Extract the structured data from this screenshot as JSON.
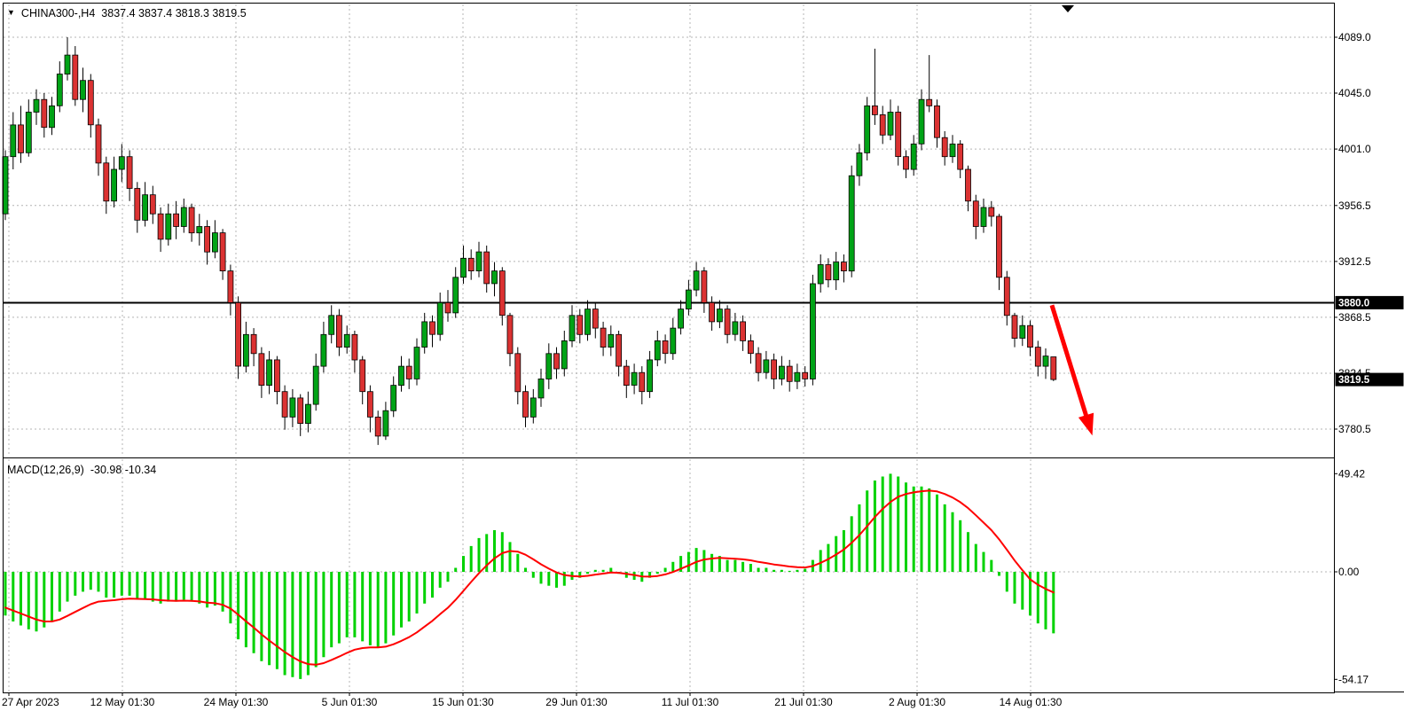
{
  "header": {
    "expand_icon": "▼",
    "symbol": "CHINA300-,H4",
    "quote": "3837.4 3837.4 3818.3 3819.5"
  },
  "indicator": {
    "label": "MACD(12,26,9)",
    "values": "-30.98 -10.34"
  },
  "price_axis": {
    "labels": [
      "4089.0",
      "4045.0",
      "4001.0",
      "3956.5",
      "3912.5",
      "3868.5",
      "3824.5",
      "3780.5"
    ]
  },
  "macd_axis": {
    "labels": [
      "49.42",
      "0.00",
      "-54.17"
    ]
  },
  "time_axis": {
    "labels": [
      "27 Apr 2023",
      "12 May 01:30",
      "24 May 01:30",
      "5 Jun 01:30",
      "15 Jun 01:30",
      "29 Jun 01:30",
      "11 Jul 01:30",
      "21 Jul 01:30",
      "2 Aug 01:30",
      "14 Aug 01:30"
    ]
  },
  "badges": {
    "hline": "3880.0",
    "last_price": "3819.5"
  },
  "colors": {
    "bull": "#00A316",
    "bear": "#DB3232",
    "wick": "#000000",
    "histogram": "#00D200",
    "signal": "#FF0000",
    "arrow": "#FF0000",
    "grid": "#B4B4B4",
    "hline": "#000000",
    "badge_bg": "#000000",
    "badge_text": "#FFFFFF"
  },
  "chart_data": {
    "type": "candlestick",
    "symbol": "CHINA300-",
    "timeframe": "H4",
    "title": "CHINA300-,H4 3837.4 3837.4 3818.3 3819.5",
    "current_bar": {
      "open": 3837.4,
      "high": 3837.4,
      "low": 3818.3,
      "close": 3819.5
    },
    "last_price": 3819.5,
    "hline": 3880.0,
    "price_axis_ticks": [
      4089.0,
      4045.0,
      4001.0,
      3956.5,
      3912.5,
      3868.5,
      3824.5,
      3780.5
    ],
    "candles_ohlc": [
      [
        3950,
        4000,
        3945,
        3995
      ],
      [
        3995,
        4030,
        3985,
        4020
      ],
      [
        4020,
        4035,
        3990,
        3998
      ],
      [
        3998,
        4040,
        3995,
        4030
      ],
      [
        4030,
        4048,
        4020,
        4040
      ],
      [
        4040,
        4045,
        4010,
        4018
      ],
      [
        4018,
        4042,
        4012,
        4035
      ],
      [
        4035,
        4070,
        4030,
        4060
      ],
      [
        4060,
        4089,
        4055,
        4075
      ],
      [
        4075,
        4082,
        4035,
        4040
      ],
      [
        4040,
        4065,
        4030,
        4055
      ],
      [
        4055,
        4060,
        4010,
        4020
      ],
      [
        4020,
        4025,
        3980,
        3990
      ],
      [
        3990,
        3995,
        3950,
        3960
      ],
      [
        3960,
        3995,
        3955,
        3985
      ],
      [
        3985,
        4005,
        3975,
        3995
      ],
      [
        3995,
        4000,
        3960,
        3970
      ],
      [
        3970,
        3975,
        3935,
        3945
      ],
      [
        3945,
        3975,
        3940,
        3965
      ],
      [
        3965,
        3972,
        3942,
        3950
      ],
      [
        3950,
        3955,
        3920,
        3930
      ],
      [
        3930,
        3958,
        3925,
        3950
      ],
      [
        3950,
        3960,
        3930,
        3940
      ],
      [
        3940,
        3962,
        3935,
        3955
      ],
      [
        3955,
        3958,
        3928,
        3935
      ],
      [
        3935,
        3950,
        3925,
        3940
      ],
      [
        3940,
        3945,
        3910,
        3920
      ],
      [
        3920,
        3945,
        3915,
        3935
      ],
      [
        3935,
        3938,
        3898,
        3905
      ],
      [
        3905,
        3910,
        3870,
        3880
      ],
      [
        3880,
        3885,
        3820,
        3830
      ],
      [
        3830,
        3865,
        3825,
        3855
      ],
      [
        3855,
        3860,
        3830,
        3840
      ],
      [
        3840,
        3845,
        3805,
        3815
      ],
      [
        3815,
        3842,
        3808,
        3835
      ],
      [
        3835,
        3838,
        3800,
        3810
      ],
      [
        3810,
        3815,
        3780,
        3790
      ],
      [
        3790,
        3812,
        3782,
        3805
      ],
      [
        3805,
        3808,
        3775,
        3785
      ],
      [
        3785,
        3810,
        3778,
        3800
      ],
      [
        3800,
        3840,
        3795,
        3830
      ],
      [
        3830,
        3865,
        3825,
        3855
      ],
      [
        3855,
        3878,
        3848,
        3870
      ],
      [
        3870,
        3875,
        3838,
        3845
      ],
      [
        3845,
        3862,
        3840,
        3855
      ],
      [
        3855,
        3858,
        3825,
        3835
      ],
      [
        3835,
        3838,
        3800,
        3810
      ],
      [
        3810,
        3815,
        3778,
        3790
      ],
      [
        3790,
        3795,
        3768,
        3775
      ],
      [
        3775,
        3802,
        3772,
        3795
      ],
      [
        3795,
        3822,
        3790,
        3815
      ],
      [
        3815,
        3838,
        3810,
        3830
      ],
      [
        3830,
        3836,
        3812,
        3820
      ],
      [
        3820,
        3852,
        3815,
        3845
      ],
      [
        3845,
        3872,
        3840,
        3865
      ],
      [
        3865,
        3870,
        3845,
        3855
      ],
      [
        3855,
        3888,
        3850,
        3880
      ],
      [
        3880,
        3890,
        3865,
        3872
      ],
      [
        3872,
        3908,
        3868,
        3900
      ],
      [
        3900,
        3925,
        3895,
        3915
      ],
      [
        3915,
        3922,
        3898,
        3905
      ],
      [
        3905,
        3928,
        3900,
        3920
      ],
      [
        3920,
        3925,
        3888,
        3895
      ],
      [
        3895,
        3912,
        3885,
        3905
      ],
      [
        3905,
        3908,
        3862,
        3870
      ],
      [
        3870,
        3872,
        3830,
        3840
      ],
      [
        3840,
        3845,
        3800,
        3810
      ],
      [
        3810,
        3815,
        3782,
        3790
      ],
      [
        3790,
        3812,
        3785,
        3805
      ],
      [
        3805,
        3828,
        3798,
        3820
      ],
      [
        3820,
        3848,
        3812,
        3840
      ],
      [
        3840,
        3845,
        3820,
        3828
      ],
      [
        3828,
        3858,
        3822,
        3850
      ],
      [
        3850,
        3878,
        3845,
        3870
      ],
      [
        3870,
        3875,
        3848,
        3855
      ],
      [
        3855,
        3882,
        3850,
        3875
      ],
      [
        3875,
        3880,
        3852,
        3860
      ],
      [
        3860,
        3865,
        3838,
        3845
      ],
      [
        3845,
        3862,
        3838,
        3855
      ],
      [
        3855,
        3858,
        3822,
        3830
      ],
      [
        3830,
        3835,
        3805,
        3815
      ],
      [
        3815,
        3832,
        3808,
        3825
      ],
      [
        3825,
        3830,
        3800,
        3810
      ],
      [
        3810,
        3842,
        3805,
        3835
      ],
      [
        3835,
        3858,
        3830,
        3850
      ],
      [
        3850,
        3855,
        3832,
        3840
      ],
      [
        3840,
        3868,
        3835,
        3860
      ],
      [
        3860,
        3882,
        3855,
        3875
      ],
      [
        3875,
        3898,
        3870,
        3890
      ],
      [
        3890,
        3912,
        3885,
        3905
      ],
      [
        3905,
        3908,
        3872,
        3880
      ],
      [
        3880,
        3885,
        3858,
        3865
      ],
      [
        3865,
        3882,
        3860,
        3875
      ],
      [
        3875,
        3878,
        3848,
        3855
      ],
      [
        3855,
        3872,
        3850,
        3865
      ],
      [
        3865,
        3870,
        3842,
        3850
      ],
      [
        3850,
        3855,
        3832,
        3840
      ],
      [
        3840,
        3845,
        3818,
        3825
      ],
      [
        3825,
        3842,
        3820,
        3835
      ],
      [
        3835,
        3840,
        3812,
        3820
      ],
      [
        3820,
        3838,
        3815,
        3830
      ],
      [
        3830,
        3835,
        3810,
        3818
      ],
      [
        3818,
        3832,
        3812,
        3825
      ],
      [
        3825,
        3830,
        3814,
        3820
      ],
      [
        3820,
        3902,
        3815,
        3895
      ],
      [
        3895,
        3918,
        3888,
        3910
      ],
      [
        3910,
        3915,
        3892,
        3898
      ],
      [
        3898,
        3920,
        3890,
        3912
      ],
      [
        3912,
        3918,
        3896,
        3905
      ],
      [
        3905,
        3988,
        3900,
        3980
      ],
      [
        3980,
        4005,
        3972,
        3998
      ],
      [
        3998,
        4042,
        3992,
        4035
      ],
      [
        4035,
        4080,
        4020,
        4028
      ],
      [
        4028,
        4035,
        4005,
        4012
      ],
      [
        4012,
        4040,
        4008,
        4030
      ],
      [
        4030,
        4035,
        3988,
        3995
      ],
      [
        3995,
        4000,
        3978,
        3985
      ],
      [
        3985,
        4012,
        3980,
        4005
      ],
      [
        4005,
        4048,
        4000,
        4040
      ],
      [
        4040,
        4075,
        4030,
        4035
      ],
      [
        4035,
        4040,
        4002,
        4010
      ],
      [
        4010,
        4015,
        3988,
        3995
      ],
      [
        3995,
        4012,
        3990,
        4005
      ],
      [
        4005,
        4008,
        3978,
        3985
      ],
      [
        3985,
        3988,
        3952,
        3960
      ],
      [
        3960,
        3965,
        3930,
        3940
      ],
      [
        3940,
        3962,
        3935,
        3955
      ],
      [
        3955,
        3960,
        3940,
        3948
      ],
      [
        3948,
        3950,
        3890,
        3900
      ],
      [
        3900,
        3905,
        3862,
        3870
      ],
      [
        3870,
        3872,
        3845,
        3852
      ],
      [
        3852,
        3870,
        3846,
        3862
      ],
      [
        3862,
        3866,
        3838,
        3845
      ],
      [
        3845,
        3850,
        3822,
        3830
      ],
      [
        3830,
        3844,
        3820,
        3838
      ],
      [
        3837.4,
        3837.4,
        3818.3,
        3819.5
      ]
    ],
    "macd": {
      "params": [
        12,
        26,
        9
      ],
      "main_current": -30.98,
      "signal_current": -10.34,
      "axis_ticks": [
        49.42,
        0.0,
        -54.17
      ],
      "histogram": [
        -22,
        -25,
        -27,
        -29,
        -30,
        -28,
        -25,
        -20,
        -15,
        -12,
        -10,
        -9,
        -10,
        -13,
        -13,
        -12,
        -12,
        -14,
        -14,
        -15,
        -16,
        -15,
        -15,
        -14,
        -15,
        -16,
        -18,
        -17,
        -20,
        -26,
        -34,
        -38,
        -41,
        -45,
        -47,
        -49,
        -52,
        -53,
        -54,
        -52,
        -48,
        -43,
        -38,
        -36,
        -33,
        -33,
        -35,
        -37,
        -38,
        -36,
        -32,
        -28,
        -25,
        -21,
        -16,
        -13,
        -8,
        -5,
        2,
        8,
        13,
        17,
        19,
        21,
        20,
        15,
        9,
        2,
        -3,
        -6,
        -7,
        -8,
        -7,
        -4,
        -3,
        -1,
        1,
        1,
        2,
        -1,
        -3,
        -4,
        -5,
        -3,
        -1,
        2,
        5,
        8,
        10,
        12,
        11,
        9,
        8,
        6,
        6,
        5,
        4,
        2,
        2,
        1,
        1,
        0.5,
        1,
        1.5,
        6,
        11,
        14,
        18,
        21,
        28,
        34,
        41,
        46,
        48,
        49.4,
        48,
        45,
        43,
        43,
        42,
        39,
        34,
        30,
        26,
        20,
        14,
        10,
        6,
        -2,
        -10,
        -16,
        -19,
        -22,
        -26,
        -29,
        -30.98
      ],
      "signal": [
        -18,
        -19.5,
        -21,
        -22.5,
        -24,
        -25,
        -25,
        -24,
        -22.2,
        -20.2,
        -18.2,
        -16.3,
        -15,
        -14.6,
        -14.3,
        -13.8,
        -13.5,
        -13.6,
        -13.7,
        -13.9,
        -14.3,
        -14.5,
        -14.6,
        -14.5,
        -14.6,
        -14.9,
        -15.5,
        -15.8,
        -16.6,
        -18.5,
        -21.6,
        -24.9,
        -28.1,
        -31.5,
        -34.6,
        -37.5,
        -40.4,
        -42.9,
        -45.1,
        -46.5,
        -46.8,
        -46,
        -44.4,
        -42.7,
        -40.8,
        -39.2,
        -38.4,
        -38.1,
        -38.1,
        -37.7,
        -36.5,
        -34.8,
        -32.9,
        -30.5,
        -27.6,
        -24.7,
        -21.3,
        -18.1,
        -14.1,
        -9.6,
        -5.1,
        -0.7,
        3.2,
        6.8,
        9.4,
        10.5,
        10.2,
        8.6,
        6.3,
        3.8,
        1.6,
        -0.3,
        -1.6,
        -2.1,
        -2.3,
        -2,
        -1.4,
        -0.9,
        -0.3,
        -0.5,
        -1,
        -1.6,
        -2.3,
        -2.4,
        -2.1,
        -1.3,
        -0.1,
        1.5,
        3.2,
        5,
        6.2,
        6.7,
        7,
        6.8,
        6.6,
        6.3,
        5.8,
        5,
        4.4,
        3.7,
        3.2,
        2.7,
        2.3,
        2.2,
        2.9,
        4.5,
        6.4,
        8.7,
        11.2,
        14.6,
        18.5,
        23,
        27.6,
        31.7,
        35.2,
        37.8,
        39.2,
        40,
        40.6,
        40.9,
        40.5,
        39.2,
        37.4,
        35.1,
        32.1,
        28.5,
        24.8,
        21,
        16.4,
        11.1,
        5.7,
        0.8,
        -3.8,
        -6.5,
        -8.6,
        -10.34
      ]
    },
    "annotations": [
      {
        "type": "arrow",
        "direction": "down-right",
        "color": "#FF0000",
        "start": {
          "bar": 134.8,
          "price": 3878
        },
        "end": {
          "bar": 140,
          "price": 3775.5
        }
      }
    ]
  }
}
